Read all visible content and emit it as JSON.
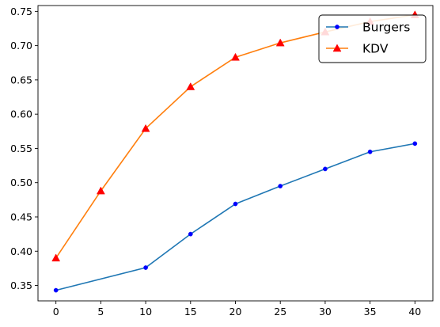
{
  "chart_data": {
    "type": "line",
    "title": "",
    "xlabel": "",
    "ylabel": "",
    "xlim": [
      -2,
      42
    ],
    "ylim": [
      0.3275,
      0.7585
    ],
    "x_ticks": [
      0,
      5,
      10,
      15,
      20,
      25,
      30,
      35,
      40
    ],
    "y_ticks": [
      0.35,
      0.4,
      0.45,
      0.5,
      0.55,
      0.6,
      0.65,
      0.7,
      0.75
    ],
    "grid": false,
    "legend_position": "top-right",
    "series": [
      {
        "name": "Burgers",
        "color": "#1f77b4",
        "marker": "point",
        "marker_color": "#0000ff",
        "x": [
          0,
          10,
          15,
          20,
          25,
          30,
          35,
          40
        ],
        "y": [
          0.343,
          0.376,
          0.425,
          0.469,
          0.495,
          0.52,
          0.545,
          0.557
        ]
      },
      {
        "name": "KDV",
        "color": "#ff7f0e",
        "marker": "triangle-up",
        "marker_color": "#ff0000",
        "x": [
          0,
          5,
          10,
          15,
          20,
          25,
          30,
          35,
          40
        ],
        "y": [
          0.39,
          0.488,
          0.579,
          0.64,
          0.683,
          0.704,
          0.72,
          0.735,
          0.745
        ]
      }
    ]
  }
}
